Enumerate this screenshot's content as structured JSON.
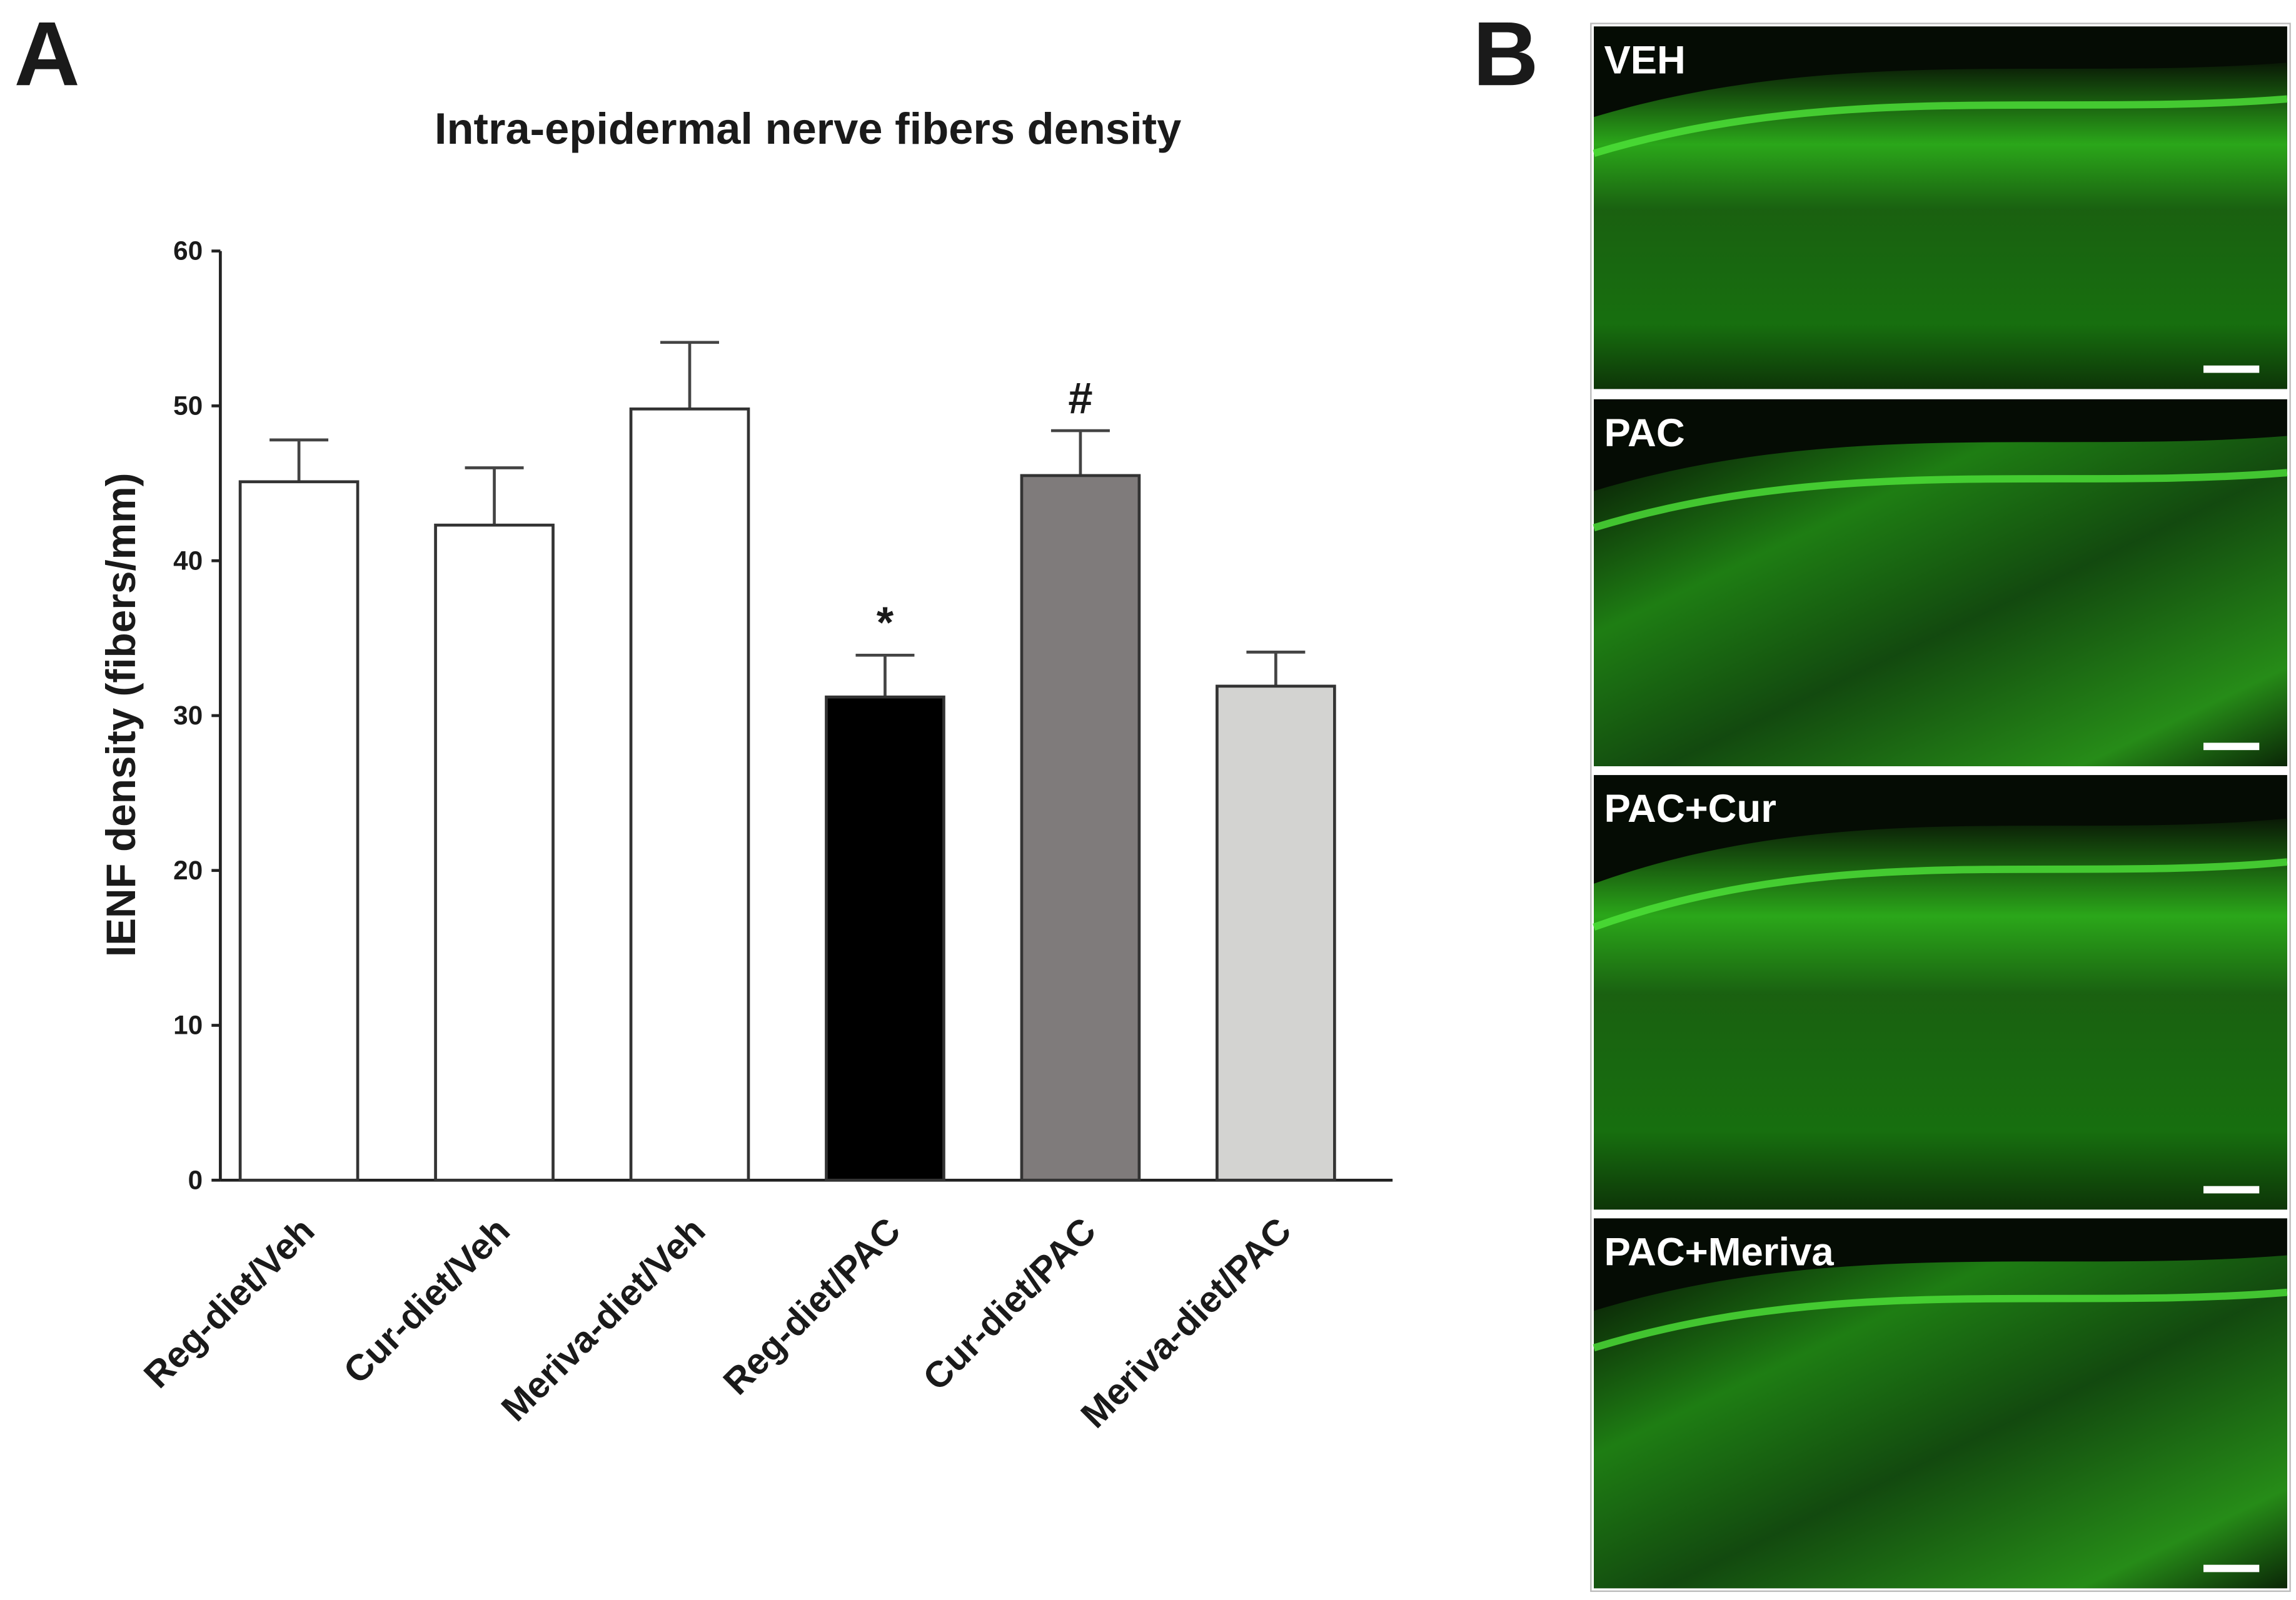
{
  "panel_labels": [
    "A",
    "B"
  ],
  "chart_data": {
    "type": "bar",
    "title": "Intra-epidermal nerve fibers density",
    "y_label": "IENF density (fibers/mm)",
    "categories": [
      "Reg-diet/Veh",
      "Cur-diet/Veh",
      "Meriva-diet/Veh",
      "Reg-diet/PAC",
      "Cur-diet/PAC",
      "Meriva-diet/PAC"
    ],
    "values": [
      45.1,
      42.3,
      49.8,
      31.2,
      45.5,
      31.9
    ],
    "errors": [
      2.7,
      3.7,
      4.3,
      2.7,
      2.9,
      2.2
    ],
    "colors": [
      "#ffffff",
      "#ffffff",
      "#ffffff",
      "#000000",
      "#7f7b7b",
      "#d3d3d1"
    ],
    "value_annotations": [
      null,
      null,
      null,
      "*",
      "#",
      null
    ],
    "ylim": [
      0,
      60
    ],
    "yticks": [
      0,
      10,
      20,
      30,
      40,
      50,
      60
    ],
    "grid": false
  },
  "image_panels": [
    {
      "label": "VEH"
    },
    {
      "label": "PAC"
    },
    {
      "label": "PAC+Cur"
    },
    {
      "label": "PAC+Meriva"
    }
  ]
}
